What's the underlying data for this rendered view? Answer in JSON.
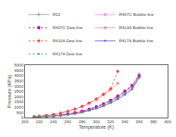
{
  "chart_data": {
    "type": "line",
    "xlabel": "Temperature (K)",
    "ylabel": "Pressure (KPa)",
    "xlim": [
      200,
      400
    ],
    "ylim": [
      0,
      5000
    ],
    "xticks": [
      200,
      220,
      240,
      260,
      280,
      300,
      320,
      340,
      360,
      380,
      400
    ],
    "yticks": [
      0,
      500,
      1000,
      1500,
      2000,
      2500,
      3000,
      3500,
      4000,
      4500,
      5000
    ],
    "grid": false,
    "legend": "upper left",
    "series": [
      {
        "name": "R22",
        "color": "#999999",
        "marker": "plus",
        "line_style": "solid",
        "x": [
          213,
          220,
          230,
          240,
          250,
          260,
          270,
          280,
          290,
          300,
          310,
          320,
          330,
          340,
          350,
          360
        ],
        "values": [
          58,
          80,
          120,
          175,
          245,
          335,
          450,
          595,
          780,
          1010,
          1285,
          1615,
          2005,
          2460,
          2995,
          4150
        ]
      },
      {
        "name": "R407C Bubble line",
        "color": "#ff99dd",
        "marker": "square",
        "line_style": "solid",
        "x": [
          213,
          220,
          230,
          240,
          250,
          260,
          270,
          280,
          290,
          300,
          310,
          320,
          330,
          340,
          350,
          360
        ],
        "values": [
          50,
          70,
          108,
          158,
          225,
          312,
          425,
          567,
          745,
          968,
          1240,
          1565,
          1950,
          2405,
          2940,
          3870
        ]
      },
      {
        "name": "R407C Dew line",
        "color": "#cc00cc",
        "marker": "square",
        "line_style": "dotted",
        "x": [
          213,
          220,
          230,
          240,
          250,
          260,
          270,
          280,
          290,
          300,
          310,
          320,
          330,
          340,
          350,
          360
        ],
        "values": [
          56,
          78,
          120,
          174,
          247,
          340,
          458,
          608,
          795,
          1030,
          1312,
          1650,
          2050,
          2520,
          3065,
          3980
        ]
      },
      {
        "name": "R410A Bubble line",
        "color": "#ff8888",
        "marker": "circle",
        "line_style": "solid",
        "x": [
          213,
          220,
          230,
          240,
          250,
          260,
          270,
          280,
          290,
          300,
          310,
          320,
          330
        ],
        "values": [
          96,
          136,
          205,
          300,
          425,
          585,
          788,
          1040,
          1350,
          1725,
          2165,
          2680,
          3280
        ]
      },
      {
        "name": "R410A Dew line",
        "color": "#ff4444",
        "marker": "diamond",
        "line_style": "dotted",
        "x": [
          213,
          220,
          230,
          240,
          250,
          260,
          270,
          280,
          290,
          300,
          310,
          320,
          330
        ],
        "values": [
          100,
          142,
          214,
          312,
          442,
          608,
          818,
          1080,
          1398,
          1782,
          2232,
          2750,
          4400
        ]
      },
      {
        "name": "R417A Bubble line",
        "color": "#5555ff",
        "marker": "triangle-up",
        "line_style": "solid",
        "x": [
          213,
          220,
          230,
          240,
          250,
          260,
          270,
          280,
          290,
          300,
          310,
          320,
          330,
          340,
          350,
          360
        ],
        "values": [
          42,
          59,
          92,
          136,
          194,
          270,
          368,
          494,
          653,
          852,
          1095,
          1390,
          1748,
          2176,
          2682,
          3800
        ]
      },
      {
        "name": "R417A Dew line",
        "color": "#44aa44",
        "marker": "triangle-up",
        "line_style": "dotted",
        "x": [
          213,
          220,
          230,
          240,
          250,
          260,
          270,
          280,
          290,
          300,
          310,
          320,
          330,
          340,
          350,
          360
        ],
        "values": [
          47,
          66,
          103,
          151,
          215,
          298,
          404,
          540,
          708,
          921,
          1178,
          1490,
          1867,
          2316,
          2840,
          3850
        ]
      }
    ]
  }
}
